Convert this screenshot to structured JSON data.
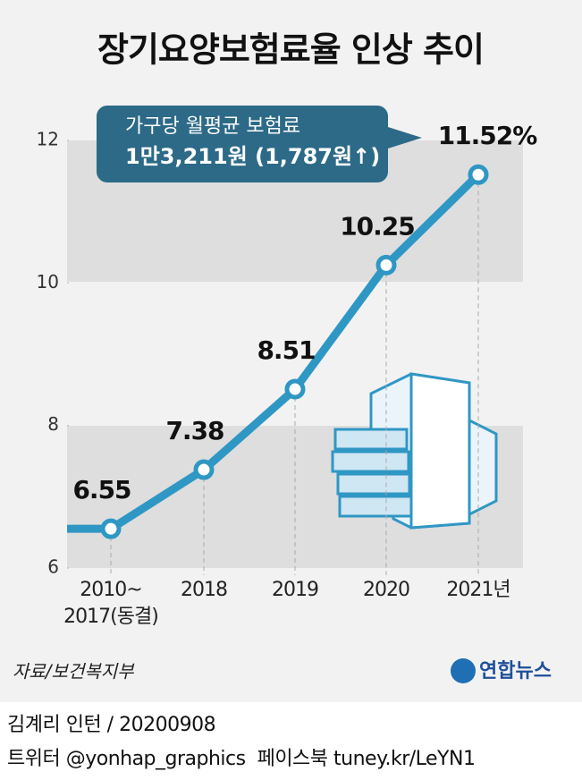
{
  "chart_data": {
    "type": "line",
    "title": "장기요양보험료율 인상 추이",
    "categories": [
      "2010~\n2017(동결)",
      "2018",
      "2019",
      "2020",
      "2021년"
    ],
    "values": [
      6.55,
      7.38,
      8.51,
      10.25,
      11.52
    ],
    "value_labels": [
      "6.55",
      "7.38",
      "8.51",
      "10.25",
      "11.52%"
    ],
    "color": "#2f97c4",
    "ylim": [
      6,
      12
    ],
    "yticks": [
      6,
      8,
      10,
      12
    ],
    "annotation": {
      "line1": "가구당 월평균 보험료",
      "line2": "1만3,211원 (1,787원↑)"
    },
    "source": "자료/보건복지부",
    "logo": "연합뉴스"
  },
  "footer": {
    "credit": "김계리 인턴 / 20200908",
    "links": "트위터 @yonhap_graphics  페이스북 tuney.kr/LeYN1"
  }
}
